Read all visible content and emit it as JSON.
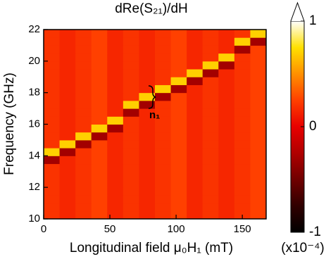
{
  "chart_data": {
    "type": "heatmap",
    "title": "dRe(S₂₁)/dH",
    "xlabel": "Longitudinal field μ₀H₁ (mT)",
    "ylabel": "Frequency (GHz)",
    "xbins": [
      0,
      12,
      24,
      36,
      48,
      60,
      72,
      84,
      96,
      108,
      120,
      132,
      144,
      156,
      168
    ],
    "ybins": [
      10,
      10.5,
      11,
      11.5,
      12,
      12.5,
      13,
      13.5,
      14,
      14.5,
      15,
      15.5,
      16,
      16.5,
      17,
      17.5,
      18,
      18.5,
      19,
      19.5,
      20,
      20.5,
      21,
      21.5,
      22
    ],
    "xlim": [
      0,
      168
    ],
    "ylim": [
      10,
      22
    ],
    "xticks": [
      0,
      50,
      100,
      150
    ],
    "yticks": [
      10,
      12,
      14,
      16,
      18,
      20,
      22
    ],
    "z": [
      [
        0.2,
        0.15,
        0.2,
        0.25,
        0.15,
        0.2,
        0.15,
        0.2,
        0.25,
        0.15,
        0.2,
        0.15,
        0.2,
        0.25
      ],
      [
        0.2,
        0.15,
        0.2,
        0.25,
        0.15,
        0.2,
        0.15,
        0.2,
        0.25,
        0.15,
        0.2,
        0.15,
        0.2,
        0.25
      ],
      [
        0.2,
        0.15,
        0.2,
        0.25,
        0.15,
        0.2,
        0.15,
        0.2,
        0.25,
        0.15,
        0.2,
        0.15,
        0.2,
        0.25
      ],
      [
        0.2,
        0.15,
        0.2,
        0.25,
        0.15,
        0.2,
        0.15,
        0.2,
        0.25,
        0.15,
        0.2,
        0.15,
        0.2,
        0.25
      ],
      [
        0.2,
        0.15,
        0.2,
        0.25,
        0.15,
        0.2,
        0.15,
        0.2,
        0.25,
        0.15,
        0.2,
        0.15,
        0.2,
        0.25
      ],
      [
        0.2,
        0.15,
        0.2,
        0.25,
        0.15,
        0.2,
        0.15,
        0.2,
        0.25,
        0.15,
        0.2,
        0.15,
        0.2,
        0.25
      ],
      [
        0.2,
        0.15,
        0.2,
        0.25,
        0.15,
        0.2,
        0.15,
        0.2,
        0.25,
        0.15,
        0.2,
        0.15,
        0.2,
        0.25
      ],
      [
        -0.3,
        0.15,
        0.2,
        0.25,
        0.15,
        0.2,
        0.15,
        0.2,
        0.25,
        0.15,
        0.2,
        0.15,
        0.2,
        0.25
      ],
      [
        0.7,
        -0.3,
        0.2,
        0.25,
        0.15,
        0.2,
        0.15,
        0.2,
        0.25,
        0.15,
        0.2,
        0.15,
        0.2,
        0.25
      ],
      [
        0.2,
        0.7,
        -0.3,
        0.25,
        0.15,
        0.2,
        0.15,
        0.2,
        0.25,
        0.15,
        0.2,
        0.15,
        0.2,
        0.25
      ],
      [
        0.2,
        0.15,
        0.7,
        -0.3,
        0.15,
        0.2,
        0.15,
        0.2,
        0.25,
        0.15,
        0.2,
        0.15,
        0.2,
        0.25
      ],
      [
        0.2,
        0.15,
        0.2,
        0.7,
        -0.3,
        0.2,
        0.15,
        0.2,
        0.25,
        0.15,
        0.2,
        0.15,
        0.2,
        0.25
      ],
      [
        0.2,
        0.15,
        0.2,
        0.25,
        0.7,
        0.2,
        0.15,
        0.2,
        0.25,
        0.15,
        0.2,
        0.15,
        0.2,
        0.25
      ],
      [
        0.2,
        0.15,
        0.2,
        0.25,
        0.15,
        -0.3,
        0.15,
        0.2,
        0.25,
        0.15,
        0.2,
        0.15,
        0.2,
        0.25
      ],
      [
        0.2,
        0.15,
        0.2,
        0.25,
        0.15,
        0.7,
        -0.3,
        0.2,
        0.25,
        0.15,
        0.2,
        0.15,
        0.2,
        0.25
      ],
      [
        0.2,
        0.15,
        0.2,
        0.25,
        0.15,
        0.2,
        0.7,
        -0.3,
        0.25,
        0.15,
        0.2,
        0.15,
        0.2,
        0.25
      ],
      [
        0.2,
        0.15,
        0.2,
        0.25,
        0.15,
        0.2,
        0.15,
        0.7,
        -0.3,
        0.15,
        0.2,
        0.15,
        0.2,
        0.25
      ],
      [
        0.2,
        0.15,
        0.2,
        0.25,
        0.15,
        0.2,
        0.15,
        0.2,
        0.7,
        -0.3,
        0.2,
        0.15,
        0.2,
        0.25
      ],
      [
        0.2,
        0.15,
        0.2,
        0.25,
        0.15,
        0.2,
        0.15,
        0.2,
        0.25,
        0.7,
        -0.3,
        0.15,
        0.2,
        0.25
      ],
      [
        0.2,
        0.15,
        0.2,
        0.25,
        0.15,
        0.2,
        0.15,
        0.2,
        0.25,
        0.15,
        0.7,
        -0.3,
        0.2,
        0.25
      ],
      [
        0.2,
        0.15,
        0.2,
        0.25,
        0.15,
        0.2,
        0.15,
        0.2,
        0.25,
        0.15,
        0.2,
        0.7,
        0.2,
        0.25
      ],
      [
        0.2,
        0.15,
        0.2,
        0.25,
        0.15,
        0.2,
        0.15,
        0.2,
        0.25,
        0.15,
        0.2,
        0.15,
        -0.3,
        0.25
      ],
      [
        0.2,
        0.15,
        0.2,
        0.25,
        0.15,
        0.2,
        0.15,
        0.2,
        0.25,
        0.15,
        0.2,
        0.15,
        0.7,
        -0.3
      ],
      [
        0.2,
        0.15,
        0.2,
        0.25,
        0.15,
        0.2,
        0.15,
        0.2,
        0.25,
        0.15,
        0.2,
        0.15,
        0.2,
        0.7
      ]
    ],
    "colorbar": {
      "lim": [
        -1,
        1
      ],
      "ticks": [
        -1,
        0,
        1
      ],
      "label": "(x10⁻⁴)",
      "colormap": [
        "#000000",
        "#300000",
        "#700000",
        "#b00000",
        "#e80000",
        "#ff4000",
        "#ff9000",
        "#ffe000",
        "#ffffff"
      ]
    },
    "annotations": [
      "n₁"
    ]
  }
}
